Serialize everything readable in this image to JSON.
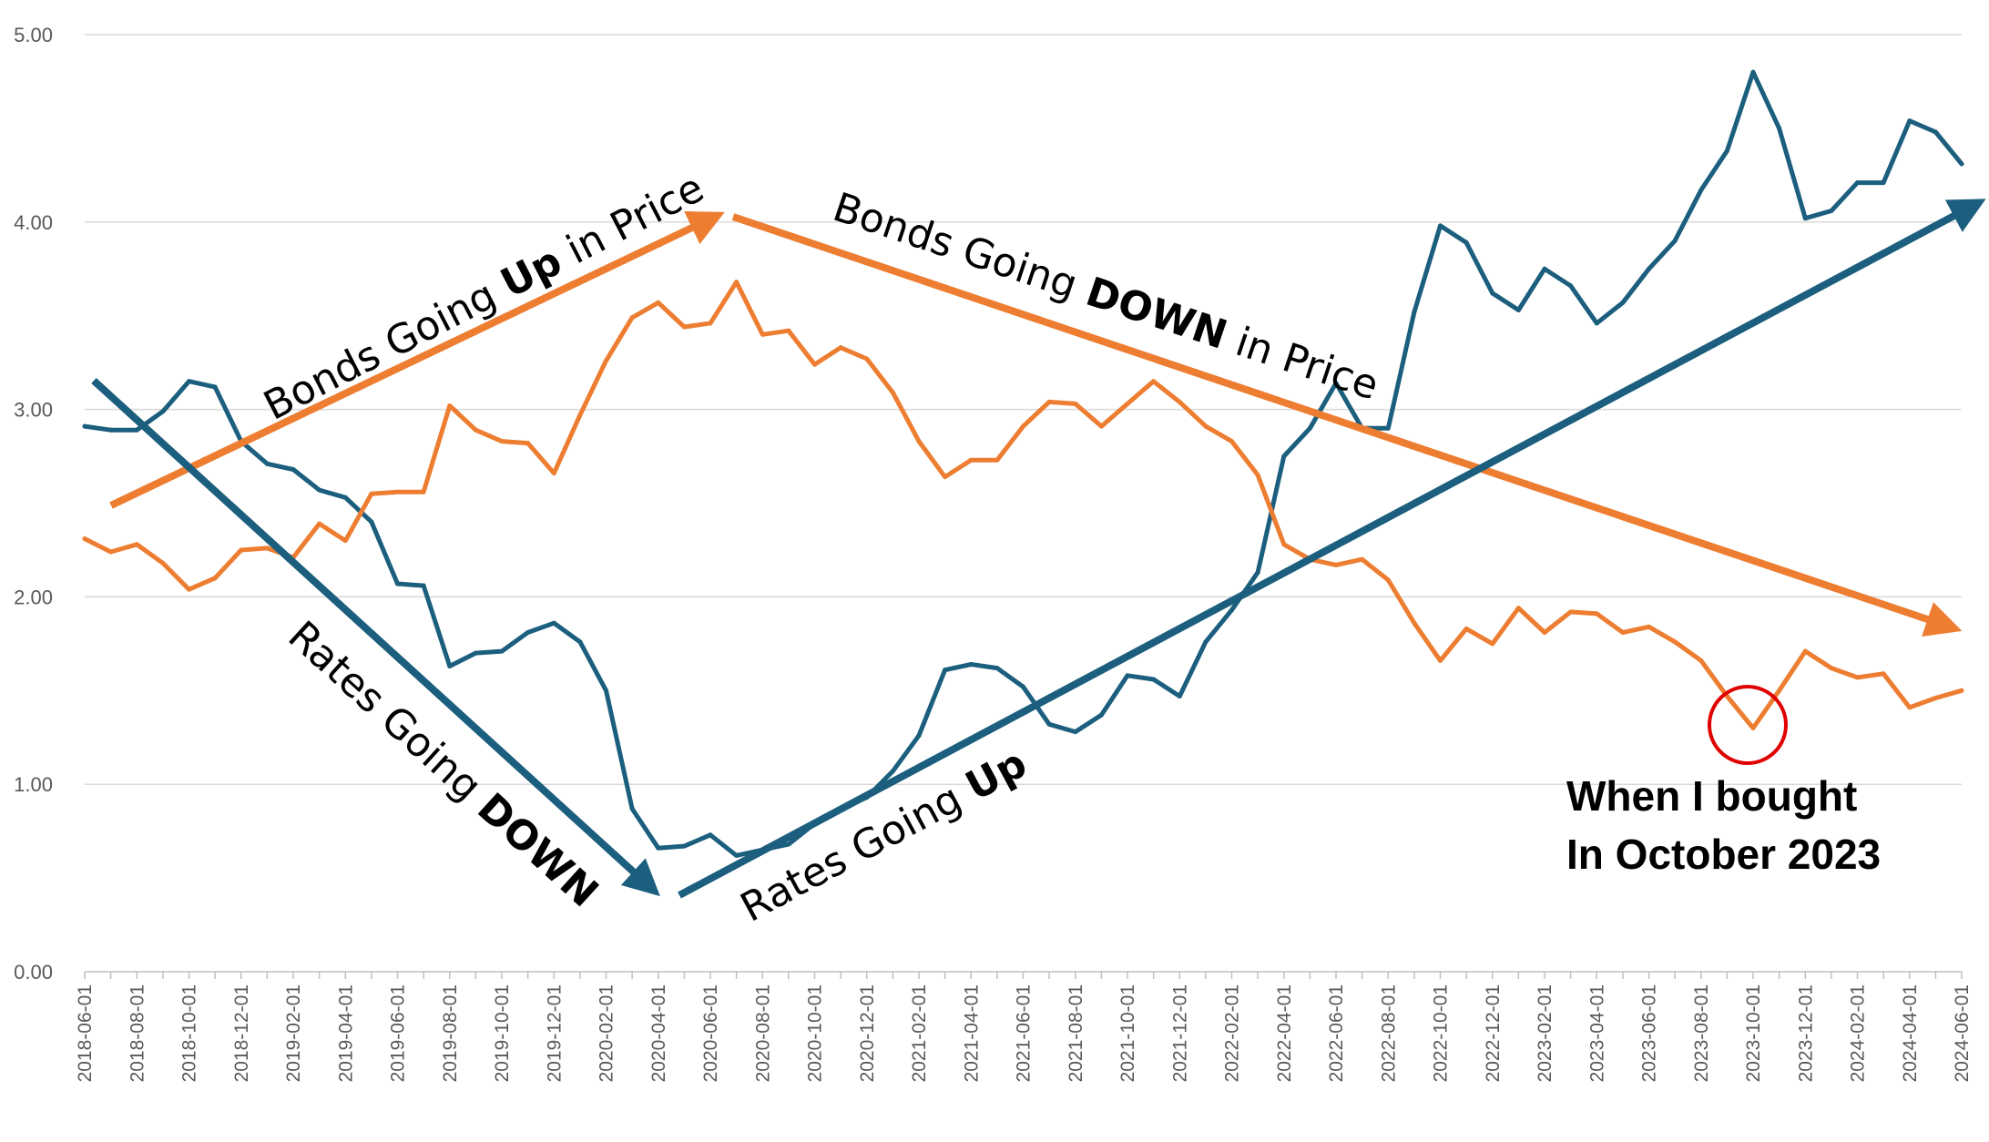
{
  "chart_data": {
    "type": "line",
    "title": "",
    "xlabel": "",
    "ylabel": "",
    "ylim": [
      0,
      5
    ],
    "yticks": [
      "0.00",
      "1.00",
      "2.00",
      "3.00",
      "4.00",
      "5.00"
    ],
    "grid": "horizontal",
    "x": [
      "2018-06-01",
      "2018-07-01",
      "2018-08-01",
      "2018-09-01",
      "2018-10-01",
      "2018-11-01",
      "2018-12-01",
      "2019-01-01",
      "2019-02-01",
      "2019-03-01",
      "2019-04-01",
      "2019-05-01",
      "2019-06-01",
      "2019-07-01",
      "2019-08-01",
      "2019-09-01",
      "2019-10-01",
      "2019-11-01",
      "2019-12-01",
      "2020-01-01",
      "2020-02-01",
      "2020-03-01",
      "2020-04-01",
      "2020-05-01",
      "2020-06-01",
      "2020-07-01",
      "2020-08-01",
      "2020-09-01",
      "2020-10-01",
      "2020-11-01",
      "2020-12-01",
      "2021-01-01",
      "2021-02-01",
      "2021-03-01",
      "2021-04-01",
      "2021-05-01",
      "2021-06-01",
      "2021-07-01",
      "2021-08-01",
      "2021-09-01",
      "2021-10-01",
      "2021-11-01",
      "2021-12-01",
      "2022-01-01",
      "2022-02-01",
      "2022-03-01",
      "2022-04-01",
      "2022-05-01",
      "2022-06-01",
      "2022-07-01",
      "2022-08-01",
      "2022-09-01",
      "2022-10-01",
      "2022-11-01",
      "2022-12-01",
      "2023-01-01",
      "2023-02-01",
      "2023-03-01",
      "2023-04-01",
      "2023-05-01",
      "2023-06-01",
      "2023-07-01",
      "2023-08-01",
      "2023-09-01",
      "2023-10-01",
      "2023-11-01",
      "2023-12-01",
      "2024-01-01",
      "2024-02-01",
      "2024-03-01",
      "2024-04-01",
      "2024-05-01",
      "2024-06-01"
    ],
    "xtick_labels": [
      "2018-06-01",
      "2018-08-01",
      "2018-10-01",
      "2018-12-01",
      "2019-02-01",
      "2019-04-01",
      "2019-06-01",
      "2019-08-01",
      "2019-10-01",
      "2019-12-01",
      "2020-02-01",
      "2020-04-01",
      "2020-06-01",
      "2020-08-01",
      "2020-10-01",
      "2020-12-01",
      "2021-02-01",
      "2021-04-01",
      "2021-06-01",
      "2021-08-01",
      "2021-10-01",
      "2021-12-01",
      "2022-02-01",
      "2022-04-01",
      "2022-06-01",
      "2022-08-01",
      "2022-10-01",
      "2022-12-01",
      "2023-02-01",
      "2023-04-01",
      "2023-06-01",
      "2023-08-01",
      "2023-10-01",
      "2023-12-01",
      "2024-02-01",
      "2024-04-01",
      "2024-06-01"
    ],
    "series": [
      {
        "color": "#1b5e7e",
        "values": [
          2.91,
          2.89,
          2.89,
          2.99,
          3.15,
          3.12,
          2.83,
          2.71,
          2.68,
          2.57,
          2.53,
          2.4,
          2.07,
          2.06,
          1.63,
          1.7,
          1.71,
          1.81,
          1.86,
          1.76,
          1.5,
          0.87,
          0.66,
          0.67,
          0.73,
          0.62,
          0.65,
          0.68,
          0.79,
          0.87,
          0.93,
          1.07,
          1.26,
          1.61,
          1.64,
          1.62,
          1.52,
          1.32,
          1.28,
          1.37,
          1.58,
          1.56,
          1.47,
          1.76,
          1.93,
          2.13,
          2.75,
          2.9,
          3.14,
          2.9,
          2.9,
          3.52,
          3.98,
          3.89,
          3.62,
          3.53,
          3.75,
          3.66,
          3.46,
          3.57,
          3.75,
          3.9,
          4.17,
          4.38,
          4.8,
          4.5,
          4.02,
          4.06,
          4.21,
          4.21,
          4.54,
          4.48,
          4.31
        ]
      },
      {
        "color": "#ed7d31",
        "values": [
          2.31,
          2.24,
          2.28,
          2.18,
          2.04,
          2.1,
          2.25,
          2.26,
          2.21,
          2.39,
          2.3,
          2.55,
          2.56,
          2.56,
          3.02,
          2.89,
          2.83,
          2.82,
          2.66,
          2.97,
          3.26,
          3.49,
          3.57,
          3.44,
          3.46,
          3.68,
          3.4,
          3.42,
          3.24,
          3.33,
          3.27,
          3.09,
          2.83,
          2.64,
          2.73,
          2.73,
          2.91,
          3.04,
          3.03,
          2.91,
          3.03,
          3.15,
          3.04,
          2.91,
          2.83,
          2.65,
          2.28,
          2.2,
          2.17,
          2.2,
          2.09,
          1.86,
          1.66,
          1.83,
          1.75,
          1.94,
          1.81,
          1.92,
          1.91,
          1.81,
          1.84,
          1.76,
          1.66,
          1.47,
          1.3,
          1.5,
          1.71,
          1.62,
          1.57,
          1.59,
          1.41,
          1.46,
          1.5
        ]
      }
    ],
    "annotations": [
      {
        "parts": [
          {
            "text": "Bonds Going ",
            "bold": false
          },
          {
            "text": "Up",
            "bold": true
          },
          {
            "text": " in Price",
            "bold": false
          }
        ]
      },
      {
        "parts": [
          {
            "text": "Bonds Going ",
            "bold": false
          },
          {
            "text": "DOWN",
            "bold": true
          },
          {
            "text": " in Price",
            "bold": false
          }
        ]
      },
      {
        "parts": [
          {
            "text": "Rates Going ",
            "bold": false
          },
          {
            "text": "DOWN",
            "bold": true
          }
        ]
      },
      {
        "parts": [
          {
            "text": "Rates Going ",
            "bold": false
          },
          {
            "text": "Up",
            "bold": true
          }
        ]
      }
    ],
    "callout": {
      "lines": [
        "When I bought",
        "In October 2023"
      ],
      "marker_color": "#e00000"
    },
    "arrow_colors": {
      "bonds": "#ed7d31",
      "rates": "#1b5e7e"
    }
  }
}
